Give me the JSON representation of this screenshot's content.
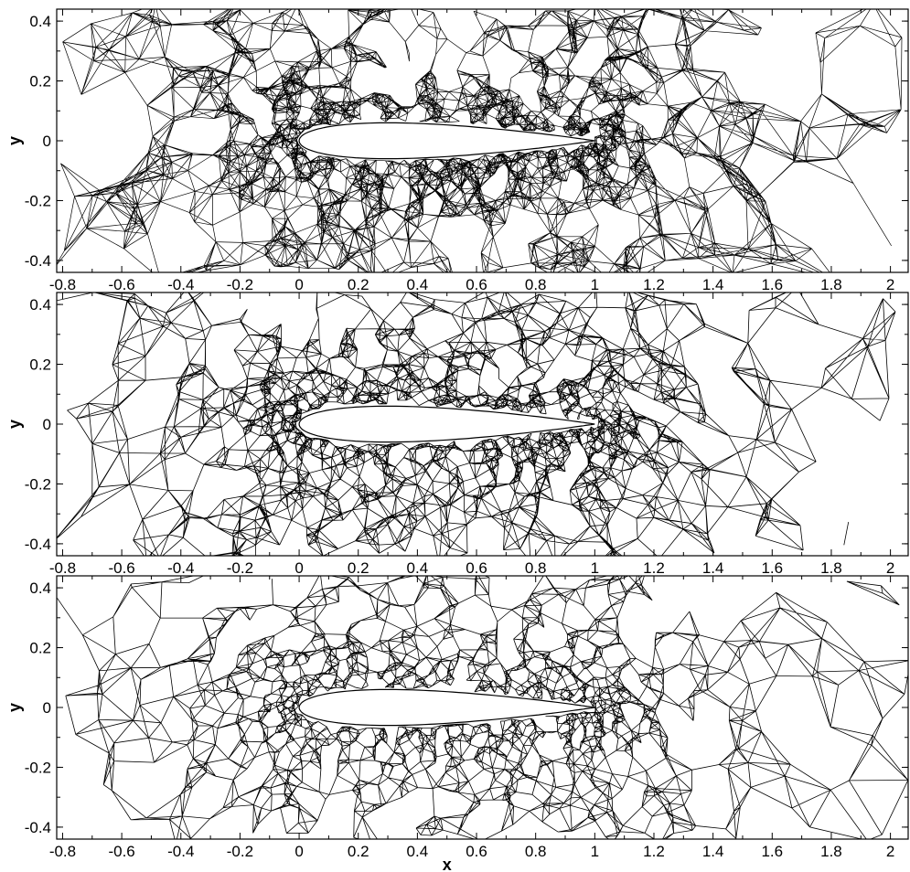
{
  "figure": {
    "description_panels": [
      "triangular",
      "quad-dominant",
      "polygonal"
    ]
  },
  "chart_data": [
    {
      "type": "diagram",
      "subject": "airfoil-mesh",
      "mesh": "triangular",
      "xlabel": "",
      "ylabel": "y",
      "xlim": [
        -0.82,
        2.06
      ],
      "ylim": [
        -0.44,
        0.44
      ],
      "xticks": [
        "-0.8",
        "-0.6",
        "-0.4",
        "-0.2",
        "0",
        "0.2",
        "0.4",
        "0.6",
        "0.8",
        "1",
        "1.2",
        "1.4",
        "1.6",
        "1.8",
        "2"
      ],
      "yticks": [
        "0.4",
        "0.2",
        "0",
        "-0.2",
        "-0.4"
      ],
      "airfoil": {
        "leading_edge": 0.0,
        "trailing_edge": 1.0,
        "max_thickness": 0.12
      }
    },
    {
      "type": "diagram",
      "subject": "airfoil-mesh",
      "mesh": "quad",
      "xlabel": "",
      "ylabel": "y",
      "xlim": [
        -0.82,
        2.06
      ],
      "ylim": [
        -0.44,
        0.44
      ],
      "xticks": [
        "-0.8",
        "-0.6",
        "-0.4",
        "-0.2",
        "0",
        "0.2",
        "0.4",
        "0.6",
        "0.8",
        "1",
        "1.2",
        "1.4",
        "1.6",
        "1.8",
        "2"
      ],
      "yticks": [
        "0.4",
        "0.2",
        "0",
        "-0.2",
        "-0.4"
      ],
      "airfoil": {
        "leading_edge": 0.0,
        "trailing_edge": 1.0,
        "max_thickness": 0.12
      }
    },
    {
      "type": "diagram",
      "subject": "airfoil-mesh",
      "mesh": "polygonal",
      "xlabel": "x",
      "ylabel": "y",
      "xlim": [
        -0.82,
        2.06
      ],
      "ylim": [
        -0.44,
        0.44
      ],
      "xticks": [
        "-0.8",
        "-0.6",
        "-0.4",
        "-0.2",
        "0",
        "0.2",
        "0.4",
        "0.6",
        "0.8",
        "1",
        "1.2",
        "1.4",
        "1.6",
        "1.8",
        "2"
      ],
      "yticks": [
        "0.4",
        "0.2",
        "0",
        "-0.2",
        "-0.4"
      ],
      "airfoil": {
        "leading_edge": 0.0,
        "trailing_edge": 1.0,
        "max_thickness": 0.12
      }
    }
  ]
}
